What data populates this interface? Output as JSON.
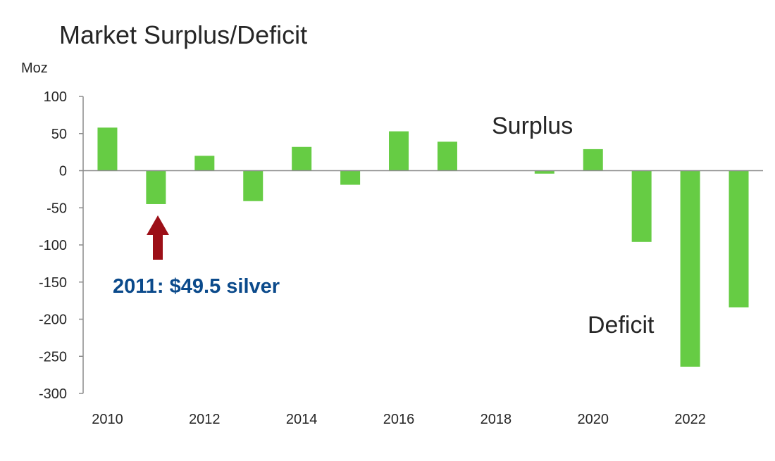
{
  "colors": {
    "bar": "#66cc44",
    "axis": "#8c8c8c",
    "arrow": "#9c0f17",
    "annotation_blue": "#0b4a8b"
  },
  "chart_data": {
    "type": "bar",
    "title": "Market Surplus/Deficit",
    "ylabel": "Moz",
    "xlabel": "",
    "categories": [
      "2010",
      "2011",
      "2012",
      "2013",
      "2014",
      "2015",
      "2016",
      "2017",
      "2018",
      "2019",
      "2020",
      "2021",
      "2022",
      "2023"
    ],
    "values": [
      58,
      -45,
      20,
      -41,
      32,
      -19,
      53,
      39,
      0,
      -4,
      29,
      -96,
      -264,
      -184
    ],
    "x_tick_labels": [
      "2010",
      "2012",
      "2014",
      "2016",
      "2018",
      "2020",
      "2022"
    ],
    "ylim": [
      -300,
      100
    ],
    "y_ticks": [
      100,
      50,
      0,
      -50,
      -100,
      -150,
      -200,
      -250,
      -300
    ],
    "grid": false,
    "legend": "none",
    "annotations": {
      "surplus": "Surplus",
      "deficit": "Deficit",
      "highlight": "2011: $49.5 silver"
    }
  }
}
